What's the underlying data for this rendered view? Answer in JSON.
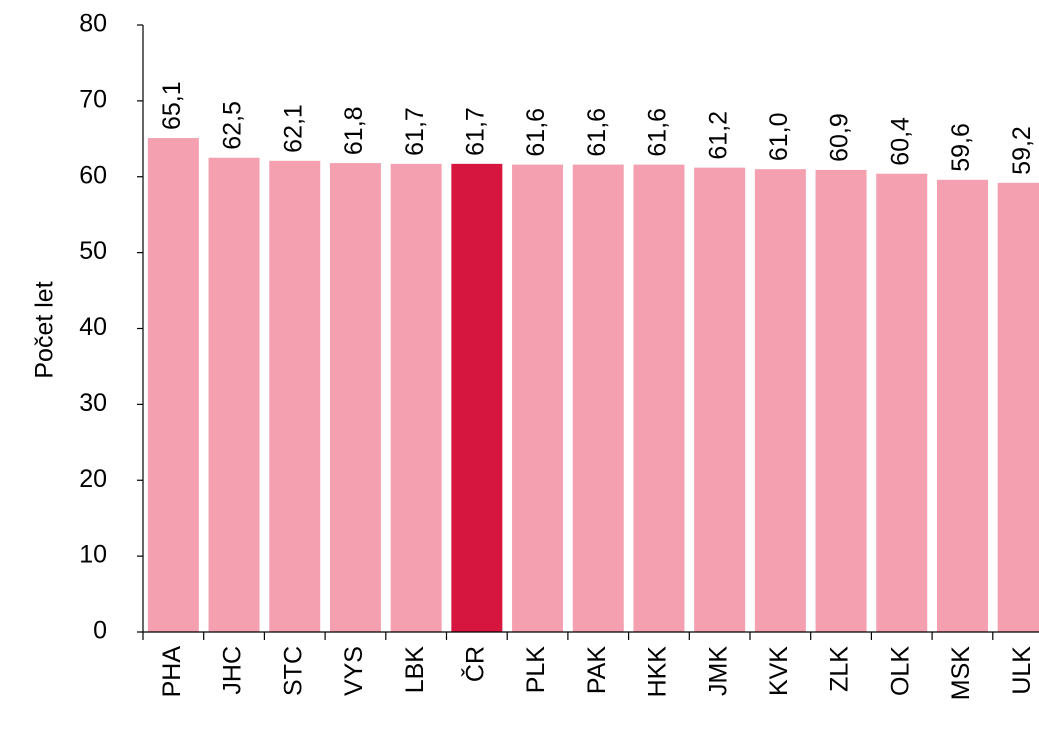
{
  "chart_data": {
    "type": "bar",
    "y_label": "Počet let",
    "categories": [
      "PHA",
      "JHC",
      "STC",
      "VYS",
      "LBK",
      "ČR",
      "PLK",
      "PAK",
      "HKK",
      "JMK",
      "KVK",
      "ZLK",
      "OLK",
      "MSK",
      "ULK"
    ],
    "values": [
      65.1,
      62.5,
      62.1,
      61.8,
      61.7,
      61.7,
      61.6,
      61.6,
      61.6,
      61.2,
      61.0,
      60.9,
      60.4,
      59.6,
      59.2
    ],
    "value_labels": [
      "65,1",
      "62,5",
      "62,1",
      "61,8",
      "61,7",
      "61,7",
      "61,6",
      "61,6",
      "61,6",
      "61,2",
      "61,0",
      "60,9",
      "60,4",
      "59,6",
      "59,2"
    ],
    "colors": [
      "#f4a0b0",
      "#f4a0b0",
      "#f4a0b0",
      "#f4a0b0",
      "#f4a0b0",
      "#d6163f",
      "#f4a0b0",
      "#f4a0b0",
      "#f4a0b0",
      "#f4a0b0",
      "#f4a0b0",
      "#f4a0b0",
      "#f4a0b0",
      "#f4a0b0",
      "#f4a0b0"
    ],
    "ylim": [
      0,
      80
    ],
    "yticks": [
      0,
      10,
      20,
      30,
      40,
      50,
      60,
      70,
      80
    ]
  }
}
